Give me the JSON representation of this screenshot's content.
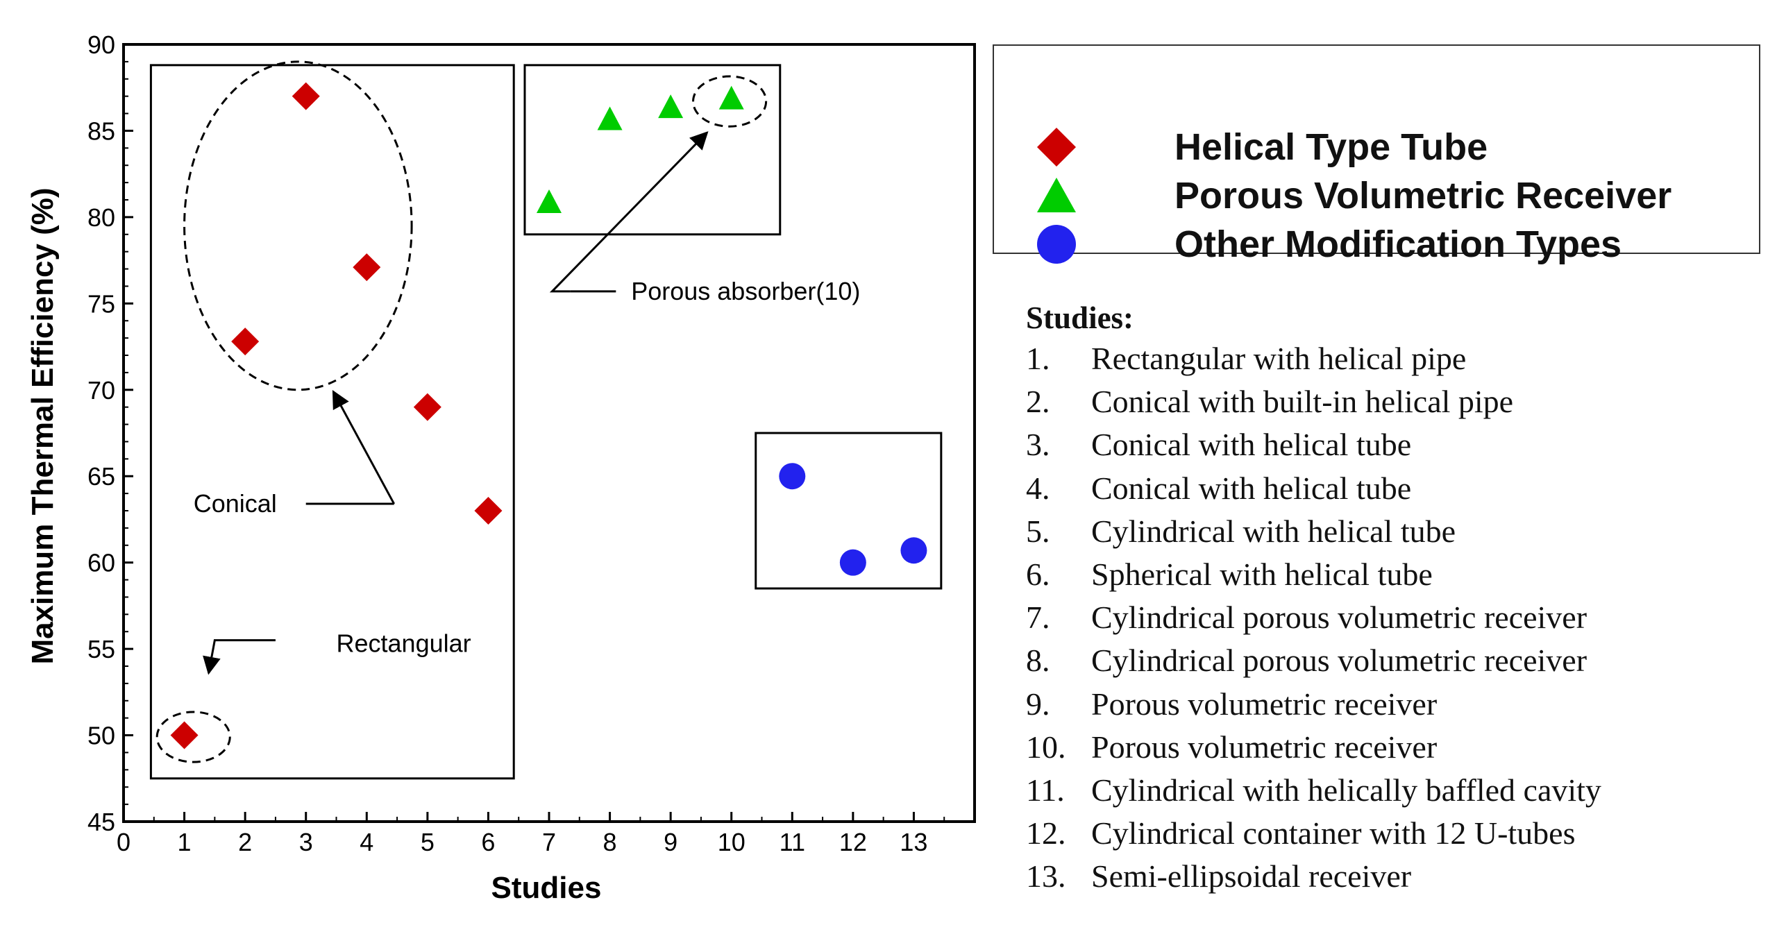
{
  "chart_data": {
    "type": "scatter",
    "title": "",
    "xlabel": "Studies",
    "ylabel": "Maximum Thermal Efficiency (%)",
    "xlim": [
      0,
      14
    ],
    "ylim": [
      45,
      90
    ],
    "xticks": [
      "0",
      "1",
      "2",
      "3",
      "4",
      "5",
      "6",
      "7",
      "8",
      "9",
      "10",
      "11",
      "12",
      "13"
    ],
    "yticks": [
      "45",
      "50",
      "55",
      "60",
      "65",
      "70",
      "75",
      "80",
      "85",
      "90"
    ],
    "series": [
      {
        "name": "Helical Type Tube",
        "color": "#cc0000",
        "marker": "diamond",
        "points": [
          [
            1,
            50.0
          ],
          [
            2,
            72.8
          ],
          [
            3,
            87.0
          ],
          [
            4,
            77.1
          ],
          [
            5,
            69.0
          ],
          [
            6,
            63.0
          ]
        ]
      },
      {
        "name": "Porous Volumetric Receiver",
        "color": "#00cc00",
        "marker": "triangle",
        "points": [
          [
            7,
            80.8
          ],
          [
            8,
            85.6
          ],
          [
            9,
            86.3
          ],
          [
            10,
            86.8
          ]
        ]
      },
      {
        "name": "Other Modification Types",
        "color": "#2222ee",
        "marker": "circle",
        "points": [
          [
            11,
            65.0
          ],
          [
            12,
            60.0
          ],
          [
            13,
            60.7
          ]
        ]
      }
    ],
    "annotations": [
      {
        "text": "Conical"
      },
      {
        "text": "Rectangular"
      },
      {
        "text": "Porous absorber(10)"
      }
    ]
  },
  "legend": {
    "items": [
      {
        "label": "Helical Type Tube",
        "color": "#cc0000",
        "icon": "diamond-icon"
      },
      {
        "label": "Porous Volumetric Receiver",
        "color": "#00cc00",
        "icon": "triangle-icon"
      },
      {
        "label": "Other Modification Types",
        "color": "#2222ee",
        "icon": "circle-icon"
      }
    ]
  },
  "studies": {
    "title": "Studies:",
    "items": [
      {
        "num": "1.",
        "text": "Rectangular with helical pipe"
      },
      {
        "num": "2.",
        "text": "Conical with built-in helical pipe"
      },
      {
        "num": "3.",
        "text": "Conical with helical tube"
      },
      {
        "num": "4.",
        "text": "Conical with helical tube"
      },
      {
        "num": "5.",
        "text": "Cylindrical with helical tube"
      },
      {
        "num": "6.",
        "text": "Spherical with helical tube"
      },
      {
        "num": "7.",
        "text": "Cylindrical porous volumetric receiver"
      },
      {
        "num": "8.",
        "text": "Cylindrical porous volumetric receiver"
      },
      {
        "num": "9.",
        "text": "Porous volumetric receiver"
      },
      {
        "num": "10.",
        "text": "Porous volumetric receiver"
      },
      {
        "num": "11.",
        "text": "Cylindrical with helically baffled cavity"
      },
      {
        "num": "12.",
        "text": "Cylindrical container with 12 U-tubes"
      },
      {
        "num": "13.",
        "text": "Semi-ellipsoidal receiver"
      }
    ]
  }
}
